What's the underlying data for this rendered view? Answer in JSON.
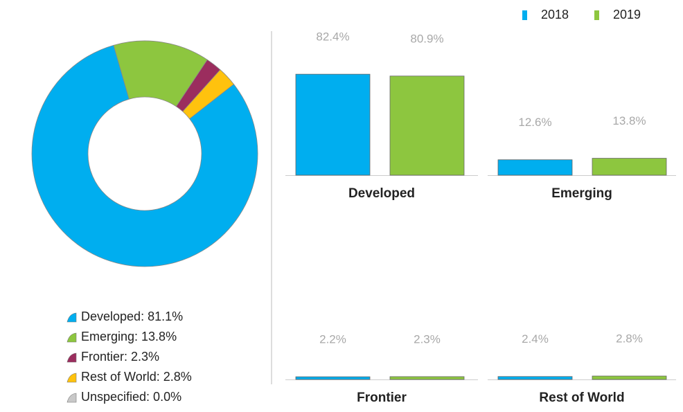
{
  "chart_data": [
    {
      "type": "pie",
      "donut": true,
      "values": [
        81.1,
        13.8,
        2.3,
        2.8,
        0.0
      ],
      "value_labels": [
        "Developed: 81.1%",
        "Emerging: 13.8%",
        "Frontier: 2.3%",
        "Rest of World: 2.8%",
        "Unspecified: 0.0%"
      ],
      "colors": [
        "#00aeef",
        "#8dc63f",
        "#9b2d5e",
        "#ffc20e",
        "#c8c8c8"
      ]
    },
    {
      "type": "bar",
      "categories": [
        "Developed",
        "Emerging",
        "Frontier",
        "Rest of World"
      ],
      "series": [
        {
          "name": "2018",
          "color": "#00aeef",
          "values": [
            82.4,
            12.6,
            2.2,
            2.4
          ],
          "value_labels": [
            "82.4%",
            "12.6%",
            "2.2%",
            "2.4%"
          ]
        },
        {
          "name": "2019",
          "color": "#8dc63f",
          "values": [
            80.9,
            13.8,
            2.3,
            2.8
          ],
          "value_labels": [
            "80.9%",
            "13.8%",
            "2.3%",
            "2.8%"
          ]
        }
      ],
      "ylim": [
        0,
        100
      ],
      "legend": "top-right"
    }
  ]
}
